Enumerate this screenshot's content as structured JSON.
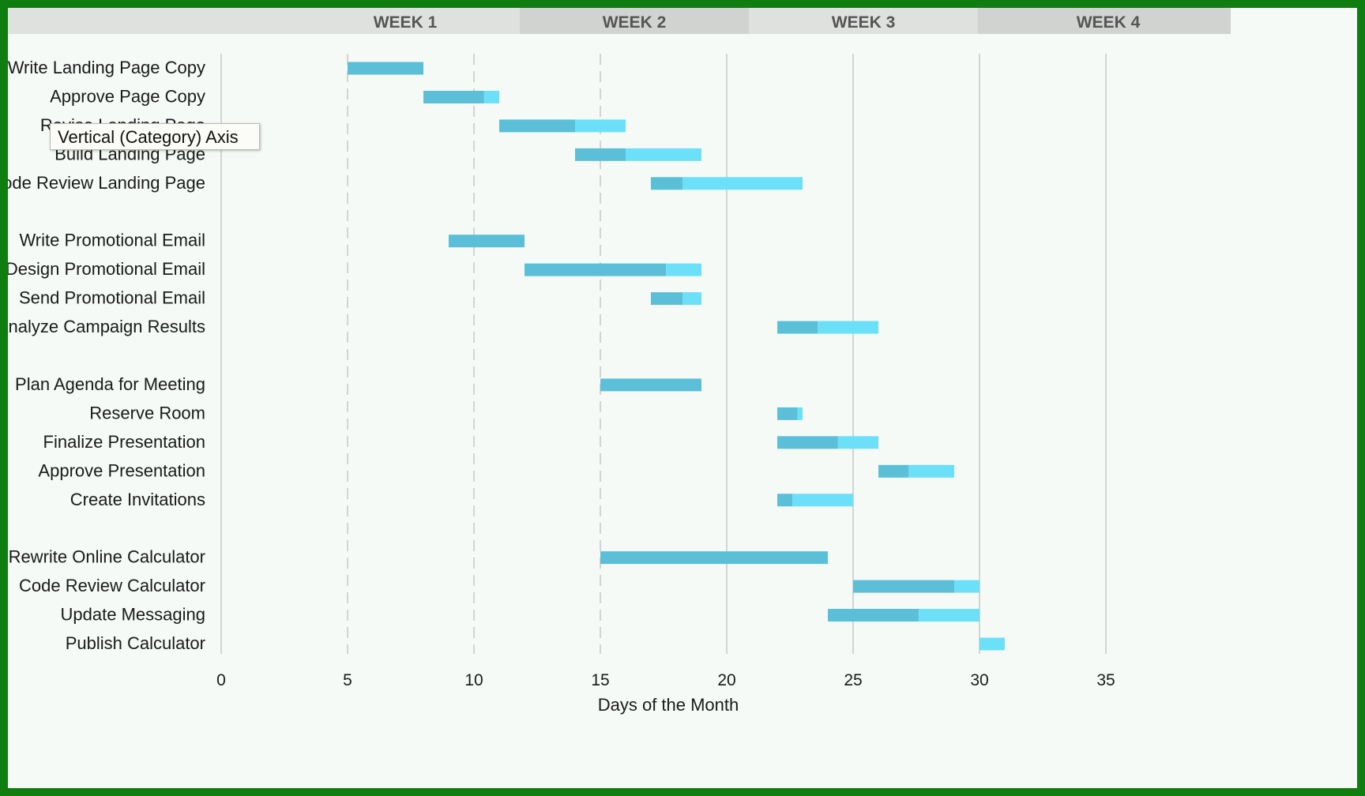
{
  "weeks": [
    "WEEK 1",
    "WEEK 2",
    "WEEK 3",
    "WEEK 4"
  ],
  "tooltip": "Vertical (Category) Axis",
  "colors": {
    "completed": "#5bbfd8",
    "remaining": "#6be0f8",
    "week_header_light": "#dfe1de",
    "week_header_dark": "#d0d3cf",
    "gridline": "#c8c8c8"
  },
  "chart_data": {
    "type": "bar",
    "orientation": "horizontal",
    "stacked": true,
    "xlabel": "Days of the Month",
    "xlim": [
      0,
      35
    ],
    "xticks": [
      0,
      5,
      10,
      15,
      20,
      25,
      30,
      35
    ],
    "grid": true,
    "categories": [
      "Write Landing Page Copy",
      "Approve Page Copy",
      "Revise Landing Page",
      "Build Landing Page",
      "Code Review Landing Page",
      "",
      "Write Promotional Email",
      "Design Promotional Email",
      "Send Promotional Email",
      "Analyze Campaign Results",
      "",
      "Plan Agenda for Meeting",
      "Reserve Room",
      "Finalize Presentation",
      "Approve Presentation",
      "Create Invitations",
      "",
      "Rewrite Online Calculator",
      "Code Review Calculator",
      "Update Messaging",
      "Publish Calculator"
    ],
    "series": [
      {
        "key": "start",
        "values": [
          5,
          8,
          11,
          14,
          17,
          null,
          9,
          12,
          17,
          22,
          null,
          15,
          22,
          22,
          26,
          22,
          null,
          15,
          25,
          24,
          30
        ]
      },
      {
        "key": "completed",
        "values": [
          3,
          2.4,
          3,
          2,
          1.25,
          null,
          3,
          5.6,
          1.25,
          1.6,
          null,
          4,
          0.8,
          2.4,
          1.2,
          0.6,
          null,
          9,
          4,
          3.6,
          0
        ]
      },
      {
        "key": "remaining",
        "values": [
          0,
          0.6,
          2,
          3,
          4.75,
          null,
          0,
          1.4,
          0.75,
          2.4,
          null,
          0,
          0.2,
          1.6,
          1.8,
          2.4,
          null,
          0,
          1,
          2.4,
          1
        ]
      }
    ]
  }
}
